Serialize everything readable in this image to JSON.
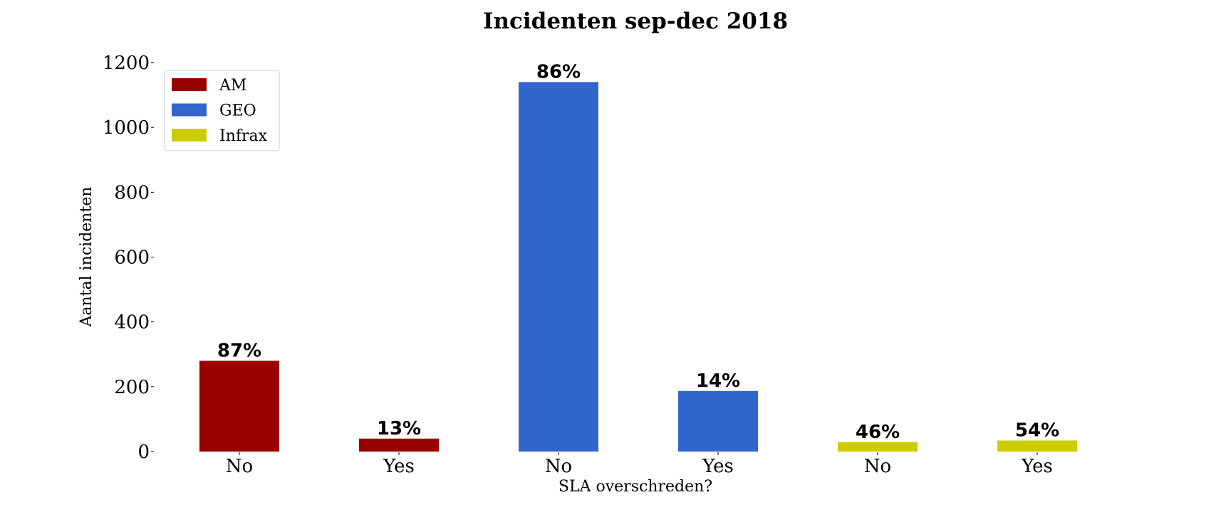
{
  "chart_data": {
    "type": "bar",
    "title": "Incidenten sep-dec 2018",
    "xlabel": "SLA overschreden?",
    "ylabel": "Aantal incidenten",
    "ylim": [
      0,
      1200
    ],
    "yticks": [
      0,
      200,
      400,
      600,
      800,
      1000,
      1200
    ],
    "grid": false,
    "legend_position": "top-left",
    "categories": [
      "No",
      "Yes",
      "No",
      "Yes",
      "No",
      "Yes"
    ],
    "values": [
      280,
      40,
      1140,
      187,
      29,
      34
    ],
    "value_labels": [
      "87%",
      "13%",
      "86%",
      "14%",
      "46%",
      "54%"
    ],
    "bar_series": [
      "AM",
      "AM",
      "GEO",
      "GEO",
      "Infrax",
      "Infrax"
    ],
    "series": [
      {
        "name": "AM",
        "color": "#990000"
      },
      {
        "name": "GEO",
        "color": "#3366cc"
      },
      {
        "name": "Infrax",
        "color": "#cccc00"
      }
    ]
  }
}
